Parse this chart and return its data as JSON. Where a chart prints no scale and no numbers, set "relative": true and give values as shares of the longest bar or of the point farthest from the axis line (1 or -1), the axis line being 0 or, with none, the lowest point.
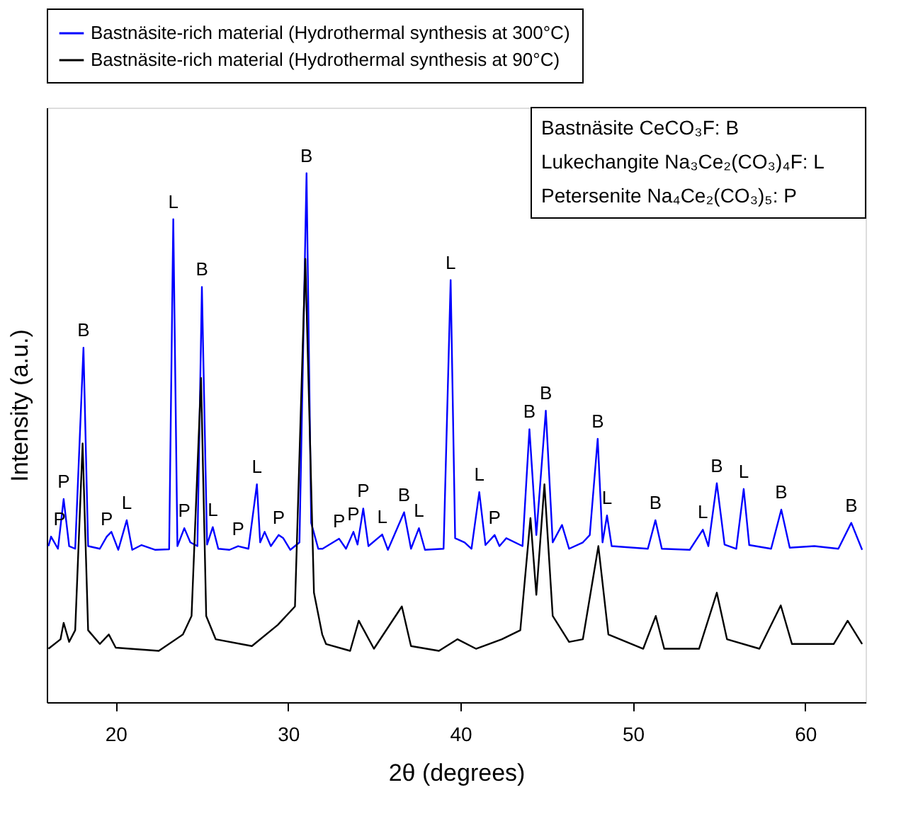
{
  "chart_data": {
    "type": "line",
    "relative": true,
    "xlabel": "2θ (degrees)",
    "ylabel": "Intensity (a.u.)",
    "xlim": [
      16,
      63.5
    ],
    "xticks": [
      20,
      30,
      40,
      50,
      60
    ],
    "tick_labels": "x",
    "grid": false,
    "legend": "top",
    "marker": "none",
    "line_style": "solid",
    "series": [
      {
        "name": "Bastnäsite-rich material (Hydrothermal synthesis at 300°C)",
        "color": "#0000ff",
        "x": [
          16.1,
          16.25,
          16.65,
          16.98,
          17.3,
          17.65,
          18.13,
          18.4,
          19.08,
          19.48,
          19.75,
          20.15,
          20.64,
          20.96,
          21.5,
          22.3,
          23.1,
          23.34,
          23.58,
          23.98,
          24.33,
          24.74,
          25.0,
          25.3,
          25.63,
          25.95,
          26.6,
          27.1,
          27.7,
          28.19,
          28.38,
          28.64,
          29.0,
          29.45,
          29.72,
          30.13,
          30.66,
          31.07,
          31.34,
          31.75,
          32.0,
          32.96,
          33.36,
          33.79,
          34.03,
          34.36,
          34.66,
          35.46,
          35.79,
          36.73,
          37.13,
          37.59,
          37.94,
          39.02,
          39.43,
          39.69,
          40.24,
          40.64,
          41.09,
          41.45,
          41.98,
          42.26,
          42.66,
          43.6,
          44.0,
          44.4,
          44.95,
          45.35,
          45.89,
          46.3,
          47.1,
          47.5,
          47.96,
          48.24,
          48.5,
          48.77,
          50.87,
          51.31,
          51.68,
          53.3,
          54.06,
          54.38,
          54.87,
          55.32,
          56.0,
          56.43,
          56.75,
          58.02,
          58.61,
          59.1,
          60.53,
          61.92,
          62.67,
          63.3
        ],
        "values": [
          0.295,
          0.313,
          0.29,
          0.384,
          0.295,
          0.29,
          0.67,
          0.295,
          0.29,
          0.313,
          0.322,
          0.288,
          0.344,
          0.288,
          0.297,
          0.288,
          0.289,
          0.913,
          0.295,
          0.329,
          0.302,
          0.295,
          0.785,
          0.298,
          0.331,
          0.29,
          0.288,
          0.295,
          0.29,
          0.412,
          0.302,
          0.322,
          0.295,
          0.316,
          0.31,
          0.288,
          0.302,
          1.0,
          0.339,
          0.29,
          0.29,
          0.309,
          0.29,
          0.322,
          0.298,
          0.366,
          0.295,
          0.317,
          0.288,
          0.359,
          0.29,
          0.329,
          0.288,
          0.29,
          0.798,
          0.31,
          0.302,
          0.29,
          0.397,
          0.297,
          0.316,
          0.295,
          0.31,
          0.295,
          0.516,
          0.316,
          0.551,
          0.302,
          0.335,
          0.29,
          0.302,
          0.316,
          0.498,
          0.302,
          0.353,
          0.295,
          0.29,
          0.344,
          0.29,
          0.288,
          0.326,
          0.295,
          0.414,
          0.298,
          0.29,
          0.403,
          0.297,
          0.29,
          0.364,
          0.292,
          0.295,
          0.29,
          0.339,
          0.288
        ]
      },
      {
        "name": "Bastnäsite-rich material (Hydrothermal synthesis at 90°C)",
        "color": "#000000",
        "x": [
          16.1,
          16.8,
          16.98,
          17.3,
          17.65,
          18.08,
          18.4,
          19.08,
          19.6,
          20.0,
          22.5,
          23.9,
          24.4,
          24.95,
          25.25,
          25.8,
          27.9,
          29.4,
          30.4,
          31.0,
          31.5,
          31.98,
          32.2,
          33.6,
          34.1,
          34.4,
          34.98,
          36.6,
          37.13,
          38.75,
          39.83,
          40.9,
          42.4,
          43.47,
          44.06,
          44.4,
          44.87,
          45.35,
          46.3,
          47.1,
          48.0,
          48.58,
          50.6,
          51.33,
          51.82,
          53.84,
          54.87,
          55.46,
          57.34,
          58.58,
          59.23,
          61.65,
          62.46,
          63.3
        ],
        "values": [
          0.101,
          0.119,
          0.15,
          0.114,
          0.136,
          0.489,
          0.136,
          0.11,
          0.128,
          0.103,
          0.097,
          0.128,
          0.163,
          0.613,
          0.163,
          0.119,
          0.106,
          0.146,
          0.181,
          0.838,
          0.207,
          0.128,
          0.11,
          0.097,
          0.154,
          0.136,
          0.101,
          0.181,
          0.106,
          0.097,
          0.119,
          0.101,
          0.119,
          0.136,
          0.348,
          0.203,
          0.412,
          0.163,
          0.114,
          0.119,
          0.295,
          0.128,
          0.101,
          0.163,
          0.101,
          0.101,
          0.207,
          0.119,
          0.101,
          0.183,
          0.11,
          0.11,
          0.154,
          0.11
        ]
      }
    ],
    "annotations": [
      "Bastnäsite CeCO₃F: B",
      "Lukechangite Na₃Ce₂(CO₃)₄F: L",
      "Petersenite Na₄Ce₂(CO₃)₅: P",
      {
        "text": "P",
        "x": 16.25,
        "y": 0.313
      },
      {
        "text": "P",
        "x": 16.98,
        "y": 0.384
      },
      {
        "text": "B",
        "x": 18.13,
        "y": 0.67
      },
      {
        "text": "P",
        "x": 19.48,
        "y": 0.313
      },
      {
        "text": "L",
        "x": 20.64,
        "y": 0.344
      },
      {
        "text": "L",
        "x": 23.34,
        "y": 0.913
      },
      {
        "text": "P",
        "x": 23.98,
        "y": 0.329
      },
      {
        "text": "B",
        "x": 25.0,
        "y": 0.785
      },
      {
        "text": "L",
        "x": 25.63,
        "y": 0.331
      },
      {
        "text": "P",
        "x": 27.1,
        "y": 0.295
      },
      {
        "text": "L",
        "x": 28.19,
        "y": 0.412
      },
      {
        "text": "P",
        "x": 29.45,
        "y": 0.316
      },
      {
        "text": "B",
        "x": 31.07,
        "y": 1.0
      },
      {
        "text": "P",
        "x": 32.96,
        "y": 0.309
      },
      {
        "text": "P",
        "x": 33.79,
        "y": 0.322
      },
      {
        "text": "P",
        "x": 34.36,
        "y": 0.366
      },
      {
        "text": "L",
        "x": 35.46,
        "y": 0.317
      },
      {
        "text": "B",
        "x": 36.73,
        "y": 0.359
      },
      {
        "text": "L",
        "x": 37.59,
        "y": 0.329
      },
      {
        "text": "L",
        "x": 39.43,
        "y": 0.798
      },
      {
        "text": "L",
        "x": 41.09,
        "y": 0.397
      },
      {
        "text": "P",
        "x": 41.98,
        "y": 0.316
      },
      {
        "text": "B",
        "x": 44.0,
        "y": 0.516
      },
      {
        "text": "B",
        "x": 44.95,
        "y": 0.551
      },
      {
        "text": "B",
        "x": 47.96,
        "y": 0.498
      },
      {
        "text": "L",
        "x": 48.5,
        "y": 0.353
      },
      {
        "text": "B",
        "x": 51.31,
        "y": 0.344
      },
      {
        "text": "L",
        "x": 54.06,
        "y": 0.326
      },
      {
        "text": "B",
        "x": 54.87,
        "y": 0.414
      },
      {
        "text": "L",
        "x": 56.43,
        "y": 0.403
      },
      {
        "text": "B",
        "x": 58.61,
        "y": 0.364
      },
      {
        "text": "B",
        "x": 62.67,
        "y": 0.339
      }
    ]
  }
}
